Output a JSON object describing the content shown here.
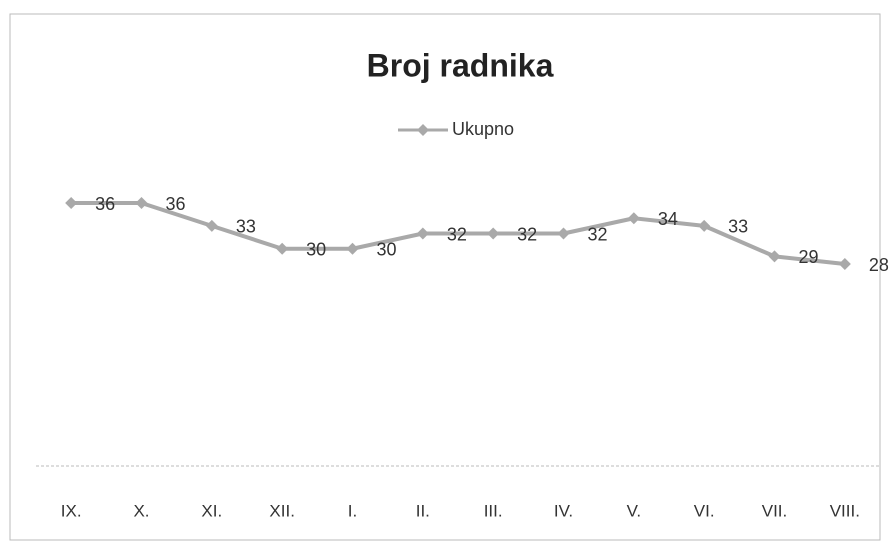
{
  "chart_data": {
    "type": "line",
    "title": "Broj radnika",
    "categories": [
      "IX.",
      "X.",
      "XI.",
      "XII.",
      "I.",
      "II.",
      "III.",
      "IV.",
      "V.",
      "VI.",
      "VII.",
      "VIII."
    ],
    "series": [
      {
        "name": "Ukupno",
        "color": "#a9a9a9",
        "values": [
          36,
          36,
          33,
          30,
          30,
          32,
          32,
          32,
          34,
          33,
          29,
          28
        ]
      }
    ],
    "legend": "top"
  }
}
